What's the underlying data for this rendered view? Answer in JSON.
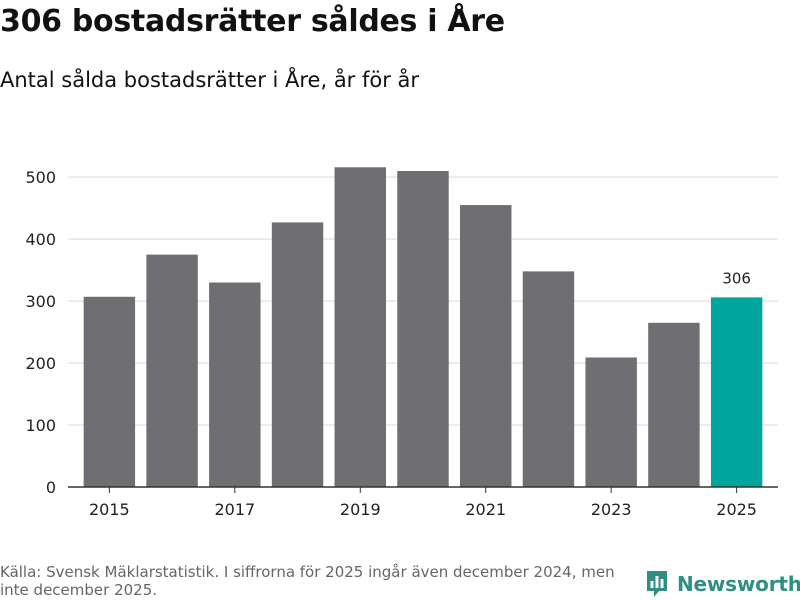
{
  "title": "306 bostadsrätter såldes i Åre",
  "subtitle": "Antal sålda bostadsrätter i Åre, år för år",
  "source": "Källa: Svensk Mäklarstatistik. I siffrorna för 2025 ingår även december 2024, men inte december 2025.",
  "brand": {
    "name": "Newsworthy",
    "logo_icon": "newsworthy-logo-icon",
    "color": "#2f8f83"
  },
  "colors": {
    "bar": "#6f6e73",
    "highlight": "#00a69c",
    "grid": "#d9d9d9",
    "axis": "#333333"
  },
  "chart_data": {
    "type": "bar",
    "title": "Antal sålda bostadsrätter i Åre, år för år",
    "xlabel": "",
    "ylabel": "",
    "categories": [
      "2015",
      "2016",
      "2017",
      "2018",
      "2019",
      "2020",
      "2021",
      "2022",
      "2023",
      "2024",
      "2025"
    ],
    "values": [
      307,
      375,
      330,
      427,
      516,
      510,
      455,
      348,
      209,
      265,
      306
    ],
    "x_ticks": [
      "2015",
      "2017",
      "2019",
      "2021",
      "2023",
      "2025"
    ],
    "y_ticks": [
      0,
      100,
      200,
      300,
      400,
      500
    ],
    "ylim": [
      0,
      560
    ],
    "grid": true,
    "highlight_index": 10,
    "annotations": [
      {
        "category": "2025",
        "text": "306"
      }
    ]
  }
}
